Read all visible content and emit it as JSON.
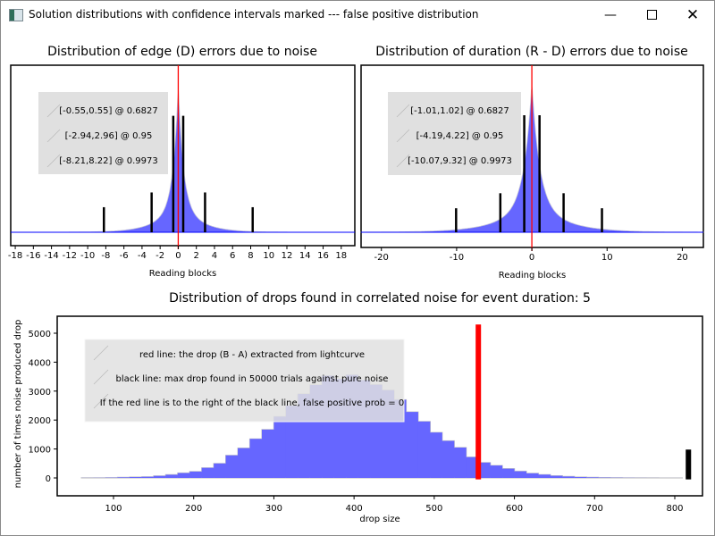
{
  "window": {
    "title": "Solution distributions with confidence intervals marked --- false positive distribution",
    "minimize_icon": "minimize-icon",
    "maximize_icon": "maximize-icon",
    "close_icon": "close-icon"
  },
  "chart_data": [
    {
      "type": "area",
      "title": "Distribution of edge (D) errors due to noise",
      "xlabel": "Reading blocks",
      "ylabel": "",
      "xlim": [
        -18.5,
        19.5
      ],
      "xticks": [
        -18,
        -16,
        -14,
        -12,
        -10,
        -8,
        -6,
        -4,
        -2,
        0,
        2,
        4,
        6,
        8,
        10,
        12,
        14,
        16,
        18
      ],
      "center_line": 0,
      "distribution_scale": 0.55,
      "legend": [
        "[-0.55,0.55] @ 0.6827",
        "[-2.94,2.96] @ 0.95",
        "[-8.21,8.22] @ 0.9973"
      ],
      "intervals": [
        {
          "low": -0.55,
          "high": 0.55,
          "confidence": 0.6827,
          "relative_height": 0.79
        },
        {
          "low": -2.94,
          "high": 2.96,
          "confidence": 0.95,
          "relative_height": 0.27
        },
        {
          "low": -8.21,
          "high": 8.22,
          "confidence": 0.9973,
          "relative_height": 0.17
        }
      ]
    },
    {
      "type": "area",
      "title": "Distribution of duration (R - D) errors due to noise",
      "xlabel": "Reading blocks",
      "ylabel": "",
      "xlim": [
        -22.7,
        22.8
      ],
      "xticks": [
        -20,
        -10,
        0,
        10,
        20
      ],
      "center_line": 0,
      "distribution_scale": 1.0,
      "legend": [
        "[-1.01,1.02] @ 0.6827",
        "[-4.19,4.22] @ 0.95",
        "[-10.07,9.32] @ 0.9973"
      ],
      "intervals": [
        {
          "low": -1.01,
          "high": 1.02,
          "confidence": 0.6827,
          "relative_height": 0.78
        },
        {
          "low": -4.19,
          "high": 4.22,
          "confidence": 0.95,
          "relative_height": 0.26
        },
        {
          "low": -10.07,
          "high": 9.32,
          "confidence": 0.9973,
          "relative_height": 0.16
        }
      ]
    },
    {
      "type": "bar",
      "title": "Distribution of drops found in correlated noise for event duration: 5",
      "xlabel": "drop size",
      "ylabel": "number of times noise produced drop",
      "xlim": [
        30,
        835
      ],
      "ylim": [
        -500,
        5500
      ],
      "xticks": [
        100,
        200,
        300,
        400,
        500,
        600,
        700,
        800
      ],
      "yticks": [
        0,
        1000,
        2000,
        3000,
        4000,
        5000
      ],
      "bin_start": 60,
      "bin_width": 15,
      "values": [
        3,
        5,
        10,
        20,
        30,
        40,
        70,
        110,
        170,
        220,
        350,
        500,
        780,
        1030,
        1350,
        1670,
        2120,
        2490,
        2900,
        3210,
        3530,
        3420,
        3560,
        3380,
        3220,
        3030,
        2700,
        2280,
        1950,
        1570,
        1280,
        1050,
        720,
        530,
        430,
        320,
        230,
        160,
        115,
        75,
        50,
        30,
        20,
        12,
        8,
        5,
        3,
        2,
        1,
        1
      ],
      "red_line": {
        "x": 555,
        "low": -50,
        "high": 5300,
        "color": "#ff0000"
      },
      "black_line": {
        "x": 817,
        "low": -50,
        "high": 980,
        "color": "#000000"
      },
      "legend": [
        "red line: the drop (B - A) extracted from lightcurve",
        "black line: max drop found in 50000 trials against pure noise",
        "If the red line is to the right of the black line, false positive prob = 0"
      ]
    }
  ],
  "colors": {
    "fill": "#6666ff",
    "baseline": "#0000ff",
    "center": "#ff0000",
    "legend_bg": "#e0e0e0"
  }
}
